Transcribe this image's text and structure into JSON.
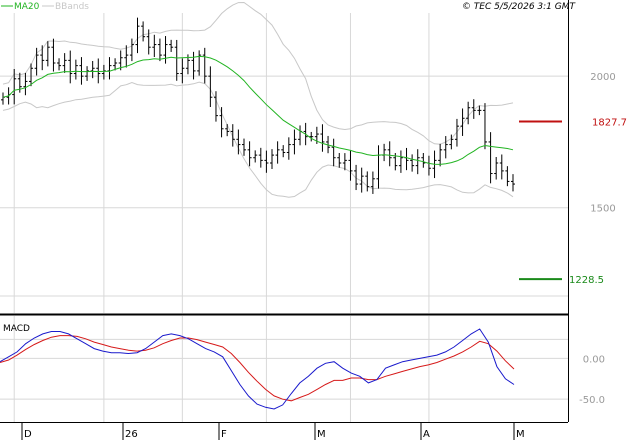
{
  "header": {
    "ma_label": "MA20",
    "bbands_label": "BBands",
    "copyright": "© TEC 5/5/2026 3:1 GMT"
  },
  "macd_label": "MACD",
  "colors": {
    "bg": "#ffffff",
    "frame": "#000000",
    "grid": "#d8d8d8",
    "candles": "#000000",
    "ma20": "#22b422",
    "bbands": "#c8c8c8",
    "macd_line": "#1a1acc",
    "signal_line": "#d61a1a",
    "resistance": "#c01010",
    "support": "#1a8a1a",
    "axis_text": "#9a9a9a"
  },
  "chart_data": [
    {
      "type": "candlestick",
      "title": "",
      "x_labels": [
        "D",
        "26",
        "F",
        "M",
        "A",
        "M"
      ],
      "y_ticks": [
        {
          "value": 2000,
          "label": "2000"
        },
        {
          "value": 1500,
          "label": "1500"
        }
      ],
      "ylim": [
        1100,
        2240
      ],
      "grid": true,
      "resistance": {
        "value": 1827.7,
        "label": "1827.7"
      },
      "support": {
        "value": 1228.5,
        "label": "1228.5"
      },
      "close": [
        1920,
        1930,
        1990,
        1960,
        1980,
        2030,
        2080,
        2060,
        2110,
        2050,
        2040,
        2060,
        2010,
        2040,
        2000,
        2020,
        2030,
        2010,
        2020,
        2040,
        2050,
        2070,
        2080,
        2120,
        2190,
        2150,
        2110,
        2120,
        2080,
        2120,
        2110,
        2010,
        2030,
        2060,
        2020,
        2080,
        2000,
        1920,
        1850,
        1800,
        1790,
        1760,
        1740,
        1720,
        1690,
        1700,
        1680,
        1670,
        1700,
        1720,
        1710,
        1740,
        1760,
        1790,
        1770,
        1770,
        1780,
        1750,
        1730,
        1690,
        1670,
        1680,
        1640,
        1590,
        1620,
        1580,
        1610,
        1700,
        1720,
        1690,
        1660,
        1690,
        1680,
        1660,
        1690,
        1670,
        1650,
        1680,
        1720,
        1740,
        1760,
        1810,
        1840,
        1880,
        1870,
        1870,
        1750,
        1630,
        1670,
        1640,
        1600,
        1590
      ]
    },
    {
      "type": "line",
      "title": "MACD",
      "y_ticks": [
        {
          "value": 0,
          "label": "0.00"
        },
        {
          "value": -50,
          "label": "-50.0"
        }
      ],
      "ylim": [
        -78,
        52
      ],
      "series": [
        {
          "values": [
            -4,
            2,
            8,
            18,
            25,
            30,
            33,
            33,
            30,
            24,
            18,
            12,
            9,
            7,
            7,
            6,
            7,
            12,
            20,
            28,
            30,
            28,
            24,
            18,
            12,
            8,
            2,
            -15,
            -32,
            -46,
            -56,
            -60,
            -62,
            -57,
            -43,
            -30,
            -22,
            -12,
            -6,
            -4,
            -12,
            -18,
            -22,
            -30,
            -26,
            -12,
            -8,
            -4,
            -2,
            0,
            2,
            4,
            8,
            14,
            22,
            30,
            36,
            20,
            -10,
            -25,
            -32
          ]
        },
        {
          "values": [
            -5,
            -2,
            4,
            11,
            17,
            22,
            26,
            28,
            28,
            27,
            24,
            20,
            17,
            14,
            12,
            10,
            9,
            10,
            13,
            18,
            22,
            25,
            25,
            23,
            20,
            17,
            14,
            6,
            -5,
            -17,
            -28,
            -38,
            -46,
            -50,
            -52,
            -48,
            -44,
            -38,
            -32,
            -27,
            -27,
            -24,
            -24,
            -26,
            -26,
            -22,
            -19,
            -16,
            -13,
            -10,
            -8,
            -5,
            -1,
            3,
            8,
            14,
            21,
            18,
            9,
            -3,
            -13
          ]
        }
      ]
    }
  ]
}
